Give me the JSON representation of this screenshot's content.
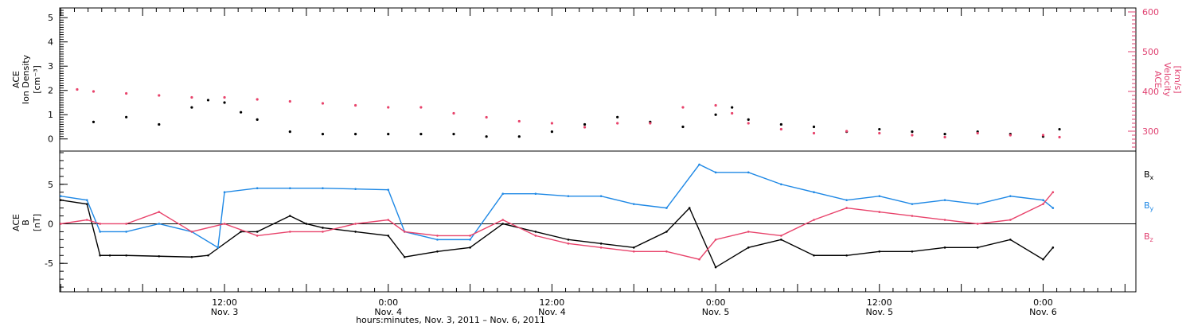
{
  "colors": {
    "density": "#000000",
    "velocity": "#e8436b",
    "bx": "#000000",
    "by": "#1e88e5",
    "bz": "#e8436b"
  },
  "chart_data": [
    {
      "type": "scatter",
      "panel": "top",
      "left_axis": {
        "label_line1": "ACE",
        "label_line2": "Ion Density",
        "unit": "[cm⁻³]",
        "range": [
          -0.5,
          5.4
        ],
        "ticks": [
          "0",
          "1",
          "2",
          "3",
          "4",
          "5"
        ],
        "tick_values": [
          0,
          1,
          2,
          3,
          4,
          5
        ]
      },
      "right_axis": {
        "label_line1": "ACE",
        "label_line2": "Velocity",
        "unit": "[km/s]",
        "range": [
          250,
          610
        ],
        "ticks": [
          "300",
          "400",
          "500",
          "600"
        ],
        "tick_values": [
          300,
          400,
          500,
          600
        ]
      },
      "series": [
        {
          "color": "#000000",
          "x": [
            3.1,
            3.2,
            3.3,
            3.4,
            3.45,
            3.5,
            3.55,
            3.6,
            3.7,
            3.8,
            3.9,
            4.0,
            4.1,
            4.2,
            4.3,
            4.4,
            4.5,
            4.6,
            4.7,
            4.8,
            4.9,
            5.0,
            5.05,
            5.1,
            5.2,
            5.3,
            5.4,
            5.5,
            5.6,
            5.7,
            5.8,
            5.9,
            6.0,
            6.05
          ],
          "y": [
            0.7,
            0.9,
            0.6,
            1.3,
            1.6,
            1.5,
            1.1,
            0.8,
            0.3,
            0.2,
            0.2,
            0.2,
            0.2,
            0.2,
            0.1,
            0.1,
            0.3,
            0.6,
            0.9,
            0.7,
            0.5,
            1.0,
            1.3,
            0.8,
            0.6,
            0.5,
            0.3,
            0.4,
            0.3,
            0.2,
            0.3,
            0.2,
            0.1,
            0.4
          ]
        },
        {
          "color": "#e8436b",
          "x": [
            3.05,
            3.1,
            3.2,
            3.3,
            3.4,
            3.5,
            3.6,
            3.7,
            3.8,
            3.9,
            4.0,
            4.1,
            4.2,
            4.3,
            4.4,
            4.5,
            4.6,
            4.7,
            4.8,
            4.9,
            5.0,
            5.05,
            5.1,
            5.2,
            5.3,
            5.4,
            5.5,
            5.6,
            5.7,
            5.8,
            5.9,
            6.0,
            6.05
          ],
          "y": [
            405,
            400,
            395,
            390,
            385,
            385,
            380,
            375,
            370,
            365,
            360,
            360,
            345,
            335,
            325,
            320,
            310,
            320,
            320,
            360,
            365,
            345,
            320,
            305,
            295,
            300,
            295,
            290,
            285,
            295,
            290,
            290,
            285
          ]
        }
      ]
    },
    {
      "type": "line",
      "panel": "bottom",
      "left_axis": {
        "label_line1": "ACE",
        "label_line2": "B",
        "unit": "[nT]",
        "range": [
          -8.6,
          9.2
        ],
        "ticks": [
          "-5",
          "0",
          "5"
        ],
        "tick_values": [
          -5,
          0,
          5
        ]
      },
      "legend": [
        "Bx",
        "By",
        "Bz"
      ],
      "series": [
        {
          "name": "Bx",
          "color": "#000000",
          "x": [
            3.0,
            3.08,
            3.12,
            3.15,
            3.2,
            3.3,
            3.4,
            3.45,
            3.55,
            3.6,
            3.7,
            3.75,
            3.8,
            3.9,
            4.0,
            4.05,
            4.15,
            4.25,
            4.35,
            4.45,
            4.55,
            4.65,
            4.75,
            4.85,
            4.92,
            5.0,
            5.1,
            5.2,
            5.3,
            5.4,
            5.5,
            5.6,
            5.7,
            5.8,
            5.9,
            6.0,
            6.03
          ],
          "y": [
            3.0,
            2.5,
            -4.0,
            -4.0,
            -4.0,
            -4.1,
            -4.2,
            -4.0,
            -1.0,
            -1.0,
            1.0,
            0.0,
            -0.5,
            -1.0,
            -1.5,
            -4.2,
            -3.5,
            -3.0,
            0.0,
            -1.0,
            -2.0,
            -2.5,
            -3.0,
            -1.0,
            2.0,
            -5.5,
            -3.0,
            -2.0,
            -4.0,
            -4.0,
            -3.5,
            -3.5,
            -3.0,
            -3.0,
            -2.0,
            -4.5,
            -3.0
          ]
        },
        {
          "name": "By",
          "color": "#1e88e5",
          "x": [
            3.0,
            3.08,
            3.12,
            3.2,
            3.3,
            3.4,
            3.48,
            3.5,
            3.6,
            3.7,
            3.8,
            3.9,
            4.0,
            4.05,
            4.15,
            4.25,
            4.35,
            4.45,
            4.55,
            4.65,
            4.75,
            4.85,
            4.95,
            5.0,
            5.1,
            5.2,
            5.3,
            5.4,
            5.5,
            5.6,
            5.7,
            5.8,
            5.9,
            6.0,
            6.03
          ],
          "y": [
            3.5,
            3.0,
            -1.0,
            -1.0,
            0.0,
            -1.0,
            -3.0,
            4.0,
            4.5,
            4.5,
            4.5,
            4.4,
            4.3,
            -1.0,
            -2.0,
            -2.0,
            3.8,
            3.8,
            3.5,
            3.5,
            2.5,
            2.0,
            7.5,
            6.5,
            6.5,
            5.0,
            4.0,
            3.0,
            3.5,
            2.5,
            3.0,
            2.5,
            3.5,
            3.0,
            2.0
          ]
        },
        {
          "name": "Bz",
          "color": "#e8436b",
          "x": [
            3.0,
            3.08,
            3.12,
            3.2,
            3.3,
            3.4,
            3.5,
            3.6,
            3.7,
            3.8,
            3.9,
            4.0,
            4.05,
            4.15,
            4.25,
            4.35,
            4.45,
            4.55,
            4.65,
            4.75,
            4.85,
            4.95,
            5.0,
            5.1,
            5.2,
            5.3,
            5.4,
            5.5,
            5.6,
            5.7,
            5.8,
            5.9,
            6.0,
            6.03
          ],
          "y": [
            0.0,
            0.5,
            0.0,
            0.0,
            1.5,
            -1.0,
            0.0,
            -1.5,
            -1.0,
            -1.0,
            0.0,
            0.5,
            -1.0,
            -1.5,
            -1.5,
            0.5,
            -1.5,
            -2.5,
            -3.0,
            -3.5,
            -3.5,
            -4.5,
            -2.0,
            -1.0,
            -1.5,
            0.5,
            2.0,
            1.5,
            1.0,
            0.5,
            0.0,
            0.5,
            2.5,
            4.0
          ]
        }
      ]
    }
  ],
  "x_axis": {
    "range": [
      2.9967,
      6.2833
    ],
    "major_ticks": [
      {
        "x": 3.5,
        "line1": "12:00",
        "line2": "Nov. 3"
      },
      {
        "x": 4.0,
        "line1": "0:00",
        "line2": "Nov. 4"
      },
      {
        "x": 4.5,
        "line1": "12:00",
        "line2": "Nov. 4"
      },
      {
        "x": 5.0,
        "line1": "0:00",
        "line2": "Nov. 5"
      },
      {
        "x": 5.5,
        "line1": "12:00",
        "line2": "Nov. 5"
      },
      {
        "x": 6.0,
        "line1": "0:00",
        "line2": "Nov. 6"
      }
    ],
    "title": "hours:minutes, Nov.  3, 2011 – Nov.  6, 2011"
  },
  "legend_labels": {
    "bx": "B",
    "bx_sub": "x",
    "by": "B",
    "by_sub": "y",
    "bz": "B",
    "bz_sub": "z"
  }
}
